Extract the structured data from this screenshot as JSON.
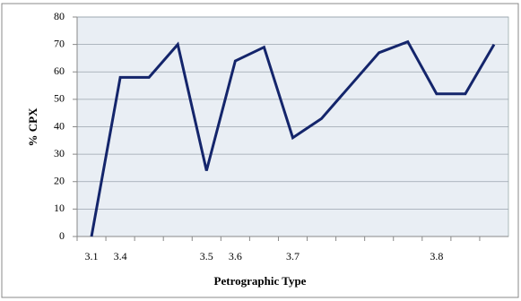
{
  "chart_data": {
    "type": "line",
    "x_label": "Petrographic Type",
    "y_label": "% CPX",
    "categories": [
      "3.1",
      "3.4",
      null,
      null,
      "3.5",
      "3.6",
      null,
      "3.7",
      null,
      null,
      null,
      null,
      "3.8",
      null,
      null
    ],
    "series": [
      {
        "name": "CPX",
        "color": "#14256b",
        "values": [
          0,
          58,
          58,
          70,
          24,
          64,
          69,
          36,
          43,
          55,
          67,
          71,
          52,
          52,
          70
        ]
      }
    ],
    "ylim": [
      0,
      80
    ],
    "yticks": [
      0,
      10,
      20,
      30,
      40,
      50,
      60,
      70,
      80
    ],
    "grid": true
  }
}
